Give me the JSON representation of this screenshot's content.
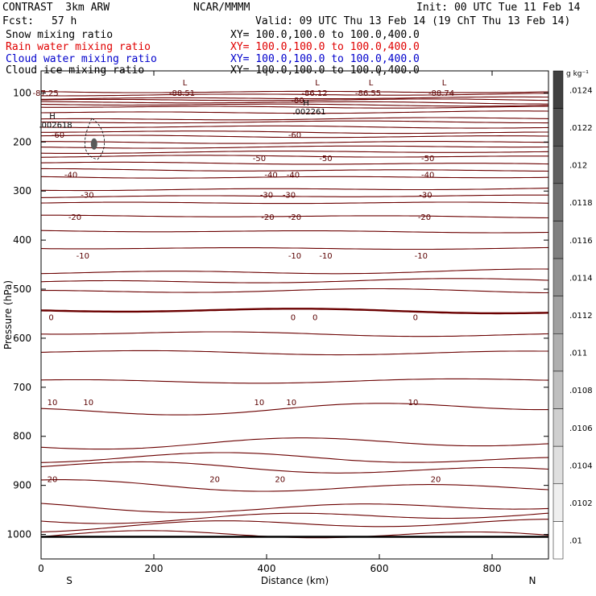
{
  "header": {
    "model": "CONTRAST  3km ARW",
    "org": "NCAR/MMMM",
    "init": "Init: 00 UTC Tue 11 Feb 14",
    "fcst_label": "Fcst:",
    "fcst_value": "57 h",
    "valid": "Valid: 09 UTC Thu 13 Feb 14 (19 ChT Thu 13 Feb 14)",
    "fields": [
      {
        "name": "Snow mixing ratio",
        "xy": "XY= 100.0,100.0 to 100.0,400.0",
        "color": "#000000"
      },
      {
        "name": "Rain water mixing ratio",
        "xy": "XY= 100.0,100.0 to 100.0,400.0",
        "color": "#e00000"
      },
      {
        "name": "Cloud water mixing ratio",
        "xy": "XY= 100.0,100.0 to 100.0,400.0",
        "color": "#0000cc"
      },
      {
        "name": "Cloud ice mixing ratio",
        "xy": "XY= 100.0,100.0 to 100.0,400.0",
        "color": "#000000"
      }
    ]
  },
  "chart_data": {
    "type": "contour",
    "ylabel": "Pressure (hPa)",
    "xlabel": "Distance (km)",
    "x_ticks": [
      0,
      200,
      400,
      600,
      800
    ],
    "y_ticks": [
      100,
      200,
      300,
      400,
      500,
      600,
      700,
      800,
      900,
      1000
    ],
    "xlim": [
      0,
      900
    ],
    "ylim_hPa": [
      55,
      1050
    ],
    "end_labels": {
      "left": "S",
      "right": "N"
    },
    "colorbar": {
      "unit": "g kg⁻¹",
      "ticks": [
        ".0124",
        ".0122",
        ".012",
        ".0118",
        ".0116",
        ".0114",
        ".0112",
        ".011",
        ".0108",
        ".0106",
        ".0104",
        ".0102",
        ".01"
      ],
      "top_color": "#404040",
      "bottom_color": "#ffffff"
    },
    "temperature_labels": [
      {
        "text": "-80",
        "x": 455,
        "p": 114
      },
      {
        "text": "-60",
        "x": 30,
        "p": 185
      },
      {
        "text": "-60",
        "x": 450,
        "p": 185
      },
      {
        "text": "-50",
        "x": 387,
        "p": 232
      },
      {
        "text": "-50",
        "x": 505,
        "p": 232
      },
      {
        "text": "-50",
        "x": 686,
        "p": 232
      },
      {
        "text": "-40",
        "x": 53,
        "p": 266
      },
      {
        "text": "-40",
        "x": 408,
        "p": 266
      },
      {
        "text": "-40",
        "x": 447,
        "p": 266
      },
      {
        "text": "-40",
        "x": 686,
        "p": 266
      },
      {
        "text": "-30",
        "x": 82,
        "p": 307
      },
      {
        "text": "-30",
        "x": 400,
        "p": 307
      },
      {
        "text": "-30",
        "x": 440,
        "p": 307
      },
      {
        "text": "-30",
        "x": 682,
        "p": 307
      },
      {
        "text": "-20",
        "x": 60,
        "p": 352
      },
      {
        "text": "-20",
        "x": 402,
        "p": 352
      },
      {
        "text": "-20",
        "x": 450,
        "p": 352
      },
      {
        "text": "-20",
        "x": 680,
        "p": 352
      },
      {
        "text": "-10",
        "x": 74,
        "p": 431
      },
      {
        "text": "-10",
        "x": 450,
        "p": 431
      },
      {
        "text": "-10",
        "x": 505,
        "p": 431
      },
      {
        "text": "-10",
        "x": 674,
        "p": 431
      },
      {
        "text": "0",
        "x": 18,
        "p": 557
      },
      {
        "text": "0",
        "x": 447,
        "p": 557
      },
      {
        "text": "0",
        "x": 486,
        "p": 557
      },
      {
        "text": "0",
        "x": 664,
        "p": 557
      },
      {
        "text": "10",
        "x": 20,
        "p": 730
      },
      {
        "text": "10",
        "x": 84,
        "p": 730
      },
      {
        "text": "10",
        "x": 387,
        "p": 730
      },
      {
        "text": "10",
        "x": 444,
        "p": 730
      },
      {
        "text": "10",
        "x": 660,
        "p": 730
      },
      {
        "text": "20",
        "x": 20,
        "p": 887
      },
      {
        "text": "20",
        "x": 308,
        "p": 887
      },
      {
        "text": "20",
        "x": 424,
        "p": 887
      },
      {
        "text": "20",
        "x": 700,
        "p": 887
      }
    ],
    "extrema_labels": [
      {
        "text": "-87.25",
        "x": 8,
        "p": 99
      },
      {
        "text": "-88.51",
        "x": 250,
        "p": 99
      },
      {
        "text": "-86.12",
        "x": 485,
        "p": 99
      },
      {
        "text": "-86.55",
        "x": 580,
        "p": 99
      },
      {
        "text": "-88.74",
        "x": 710,
        "p": 99
      }
    ],
    "low_markers": [
      {
        "text": "L",
        "x": 255,
        "p": 78
      },
      {
        "text": "L",
        "x": 490,
        "p": 78
      },
      {
        "text": "L",
        "x": 585,
        "p": 78
      },
      {
        "text": "L",
        "x": 715,
        "p": 78
      }
    ],
    "high_markers": [
      {
        "text": "H",
        "x": 20,
        "p": 153,
        "value": ".002618"
      },
      {
        "text": "H",
        "x": 470,
        "p": 126,
        "value": ".002261"
      }
    ]
  }
}
